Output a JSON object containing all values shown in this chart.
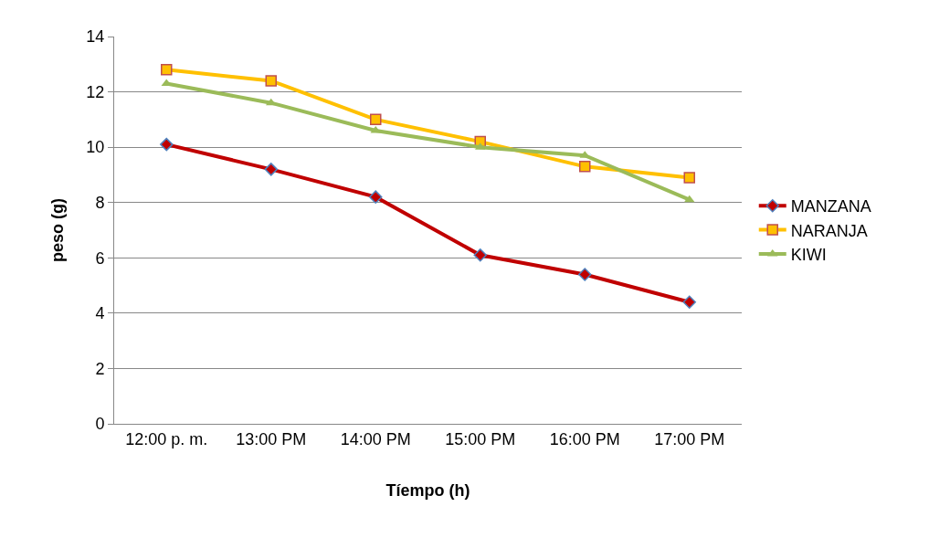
{
  "chart_data": {
    "type": "line",
    "xlabel": "Tíempo (h)",
    "ylabel": "peso (g)",
    "categories": [
      "12:00 p. m.",
      "13:00 PM",
      "14:00 PM",
      "15:00 PM",
      "16:00 PM",
      "17:00 PM"
    ],
    "series": [
      {
        "name": "MANZANA",
        "color": "#c00000",
        "marker": "diamond",
        "values": [
          10.1,
          9.2,
          8.2,
          6.1,
          5.4,
          4.4
        ]
      },
      {
        "name": "NARANJA",
        "color": "#ffc000",
        "marker": "square",
        "values": [
          12.8,
          12.4,
          11.0,
          10.2,
          9.3,
          8.9
        ]
      },
      {
        "name": "KIWI",
        "color": "#9bbb59",
        "marker": "triangle",
        "values": [
          12.3,
          11.6,
          10.6,
          10.0,
          9.7,
          8.1
        ]
      }
    ],
    "ylim": [
      0,
      14
    ],
    "yticks": [
      0,
      2,
      4,
      6,
      8,
      10,
      12,
      14
    ],
    "grid": "y",
    "legend": "right"
  }
}
